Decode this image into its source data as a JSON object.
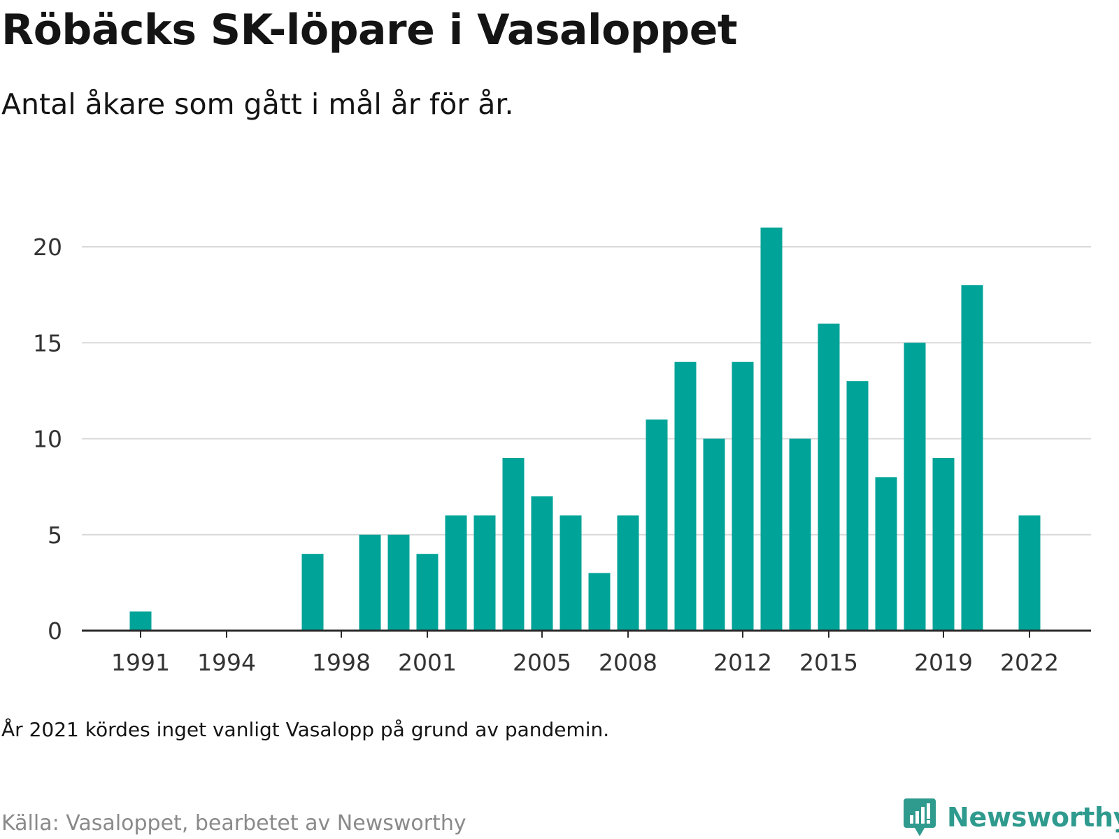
{
  "title": "Röbäcks SK-löpare i Vasaloppet",
  "subtitle": "Antal åkare som gått i mål år för år.",
  "note": "År 2021 kördes inget vanligt Vasalopp på grund av pandemin.",
  "source": "Källa: Vasaloppet, bearbetet av Newsworthy",
  "logo_text": "Newsworthy",
  "colors": {
    "bar": "#00a398",
    "grid": "#d9d9d9",
    "axis": "#2b2b2b",
    "tick_text": "#333333",
    "brand": "#2f9a8e"
  },
  "chart_data": {
    "type": "bar",
    "title": "Röbäcks SK-löpare i Vasaloppet",
    "subtitle": "Antal åkare som gått i mål år för år.",
    "xlabel": "",
    "ylabel": "",
    "x": [
      1991,
      1992,
      1993,
      1994,
      1995,
      1996,
      1997,
      1998,
      1999,
      2000,
      2001,
      2002,
      2003,
      2004,
      2005,
      2006,
      2007,
      2008,
      2009,
      2010,
      2011,
      2012,
      2013,
      2014,
      2015,
      2016,
      2017,
      2018,
      2019,
      2020,
      2021,
      2022
    ],
    "values": [
      1,
      0,
      0,
      0,
      0,
      0,
      4,
      0,
      5,
      5,
      4,
      6,
      6,
      9,
      7,
      6,
      3,
      6,
      11,
      14,
      10,
      14,
      21,
      10,
      16,
      13,
      8,
      15,
      9,
      18,
      0,
      6
    ],
    "x_tick_labels": [
      "1991",
      "1994",
      "1998",
      "2001",
      "2005",
      "2008",
      "2012",
      "2015",
      "2019",
      "2022"
    ],
    "y_ticks": [
      0,
      5,
      10,
      15,
      20
    ],
    "ylim": [
      0,
      21
    ],
    "grid": true,
    "legend": "none"
  }
}
